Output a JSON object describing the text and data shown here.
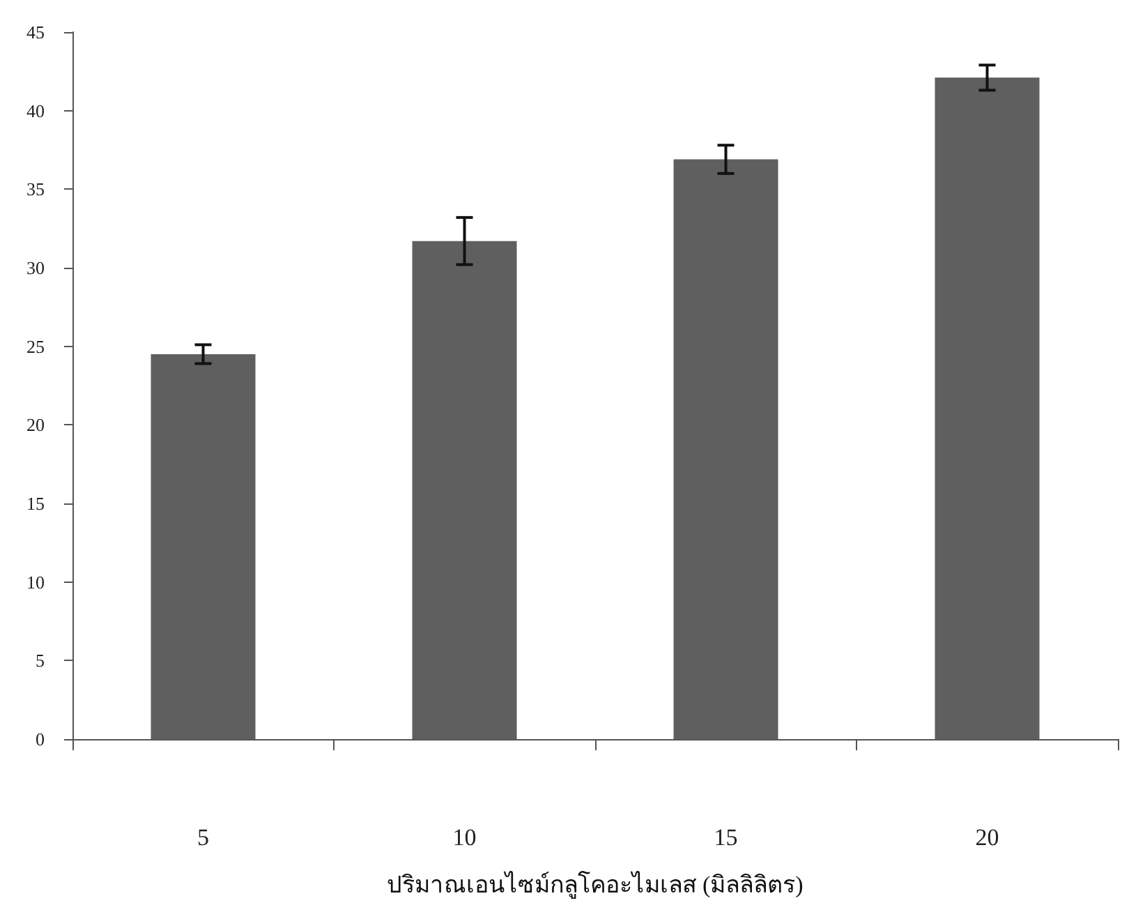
{
  "chart_data": {
    "type": "bar",
    "xlabel": "ปริมาณเอนไซม์กลูโคอะไมเลส (มิลลิลิตร)",
    "categories": [
      "5",
      "10",
      "15",
      "20"
    ],
    "values": [
      24.5,
      31.7,
      36.9,
      42.1
    ],
    "errors": [
      0.6,
      1.5,
      0.9,
      0.8
    ],
    "color": "#5f5f5f",
    "ylim": [
      0,
      45
    ],
    "yticks": [
      0,
      5,
      10,
      15,
      20,
      25,
      30,
      35,
      40,
      45
    ],
    "grid": false
  }
}
